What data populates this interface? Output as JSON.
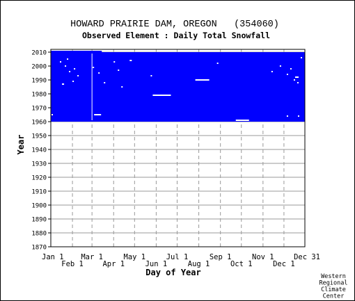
{
  "chart_data": {
    "type": "heatmap",
    "title": "HOWARD PRAIRIE DAM, OREGON   (354060)",
    "subtitle": "Observed Element : Daily Total Snowfall",
    "xlabel": "Day of Year",
    "ylabel": "Year",
    "x_ticks_top_row": [
      "Jan 1",
      "Mar 1",
      "May 1",
      "Jul 1",
      "Sep 1",
      "Nov 1",
      "Dec 31"
    ],
    "x_ticks_top_row_days": [
      1,
      60,
      121,
      182,
      244,
      305,
      365
    ],
    "x_ticks_bottom_row": [
      "Feb 1",
      "Apr 1",
      "Jun 1",
      "Aug 1",
      "Oct 1",
      "Dec 1"
    ],
    "x_ticks_bottom_row_days": [
      32,
      91,
      152,
      213,
      274,
      335
    ],
    "xlim": [
      1,
      365
    ],
    "y_ticks": [
      2010,
      2000,
      1990,
      1980,
      1970,
      1960,
      1950,
      1940,
      1930,
      1920,
      1910,
      1900,
      1890,
      1880,
      1870
    ],
    "ylim": [
      1870,
      2012
    ],
    "grid": true,
    "data_color": "#0000ff",
    "record_period": {
      "start_year": 1960,
      "end_year": 2009
    },
    "record_years": [
      {
        "year": 2010,
        "day_start": 1,
        "day_end": 74
      },
      {
        "year": 2009,
        "day_start": 1,
        "day_end": 365
      }
    ],
    "missing_segments": [
      {
        "year": 1965,
        "day_start": 63,
        "day_end": 73
      },
      {
        "year": 1979,
        "day_start": 147,
        "day_end": 173
      },
      {
        "year": 1990,
        "day_start": 208,
        "day_end": 228
      },
      {
        "year": 1961,
        "day_start": 266,
        "day_end": 285
      },
      {
        "year": 1987,
        "day_start": 17,
        "day_end": 20
      },
      {
        "year": 2004,
        "day_start": 114,
        "day_end": 117
      },
      {
        "year": 1992,
        "day_start": 351,
        "day_end": 356
      }
    ],
    "missing_points": [
      {
        "year": 2005,
        "day": 25
      },
      {
        "year": 2003,
        "day": 15
      },
      {
        "year": 2000,
        "day": 22
      },
      {
        "year": 1998,
        "day": 35
      },
      {
        "year": 1996,
        "day": 28
      },
      {
        "year": 1993,
        "day": 40
      },
      {
        "year": 1989,
        "day": 33
      },
      {
        "year": 1999,
        "day": 62
      },
      {
        "year": 1995,
        "day": 70
      },
      {
        "year": 1988,
        "day": 78
      },
      {
        "year": 2003,
        "day": 92
      },
      {
        "year": 1997,
        "day": 98
      },
      {
        "year": 1985,
        "day": 103
      },
      {
        "year": 1993,
        "day": 145
      },
      {
        "year": 2002,
        "day": 240
      },
      {
        "year": 1996,
        "day": 318
      },
      {
        "year": 2000,
        "day": 330
      },
      {
        "year": 1994,
        "day": 340
      },
      {
        "year": 1990,
        "day": 350
      },
      {
        "year": 1998,
        "day": 345
      },
      {
        "year": 2006,
        "day": 360
      },
      {
        "year": 1988,
        "day": 355
      },
      {
        "year": 1964,
        "day": 340
      },
      {
        "year": 1964,
        "day": 356
      },
      {
        "year": 1965,
        "day": 3
      }
    ],
    "missing_vertical_segments": [
      {
        "day": 60,
        "year_start": 1961,
        "year_end": 2009
      }
    ]
  },
  "credit": [
    "Western",
    "Regional",
    "Climate",
    "Center"
  ]
}
